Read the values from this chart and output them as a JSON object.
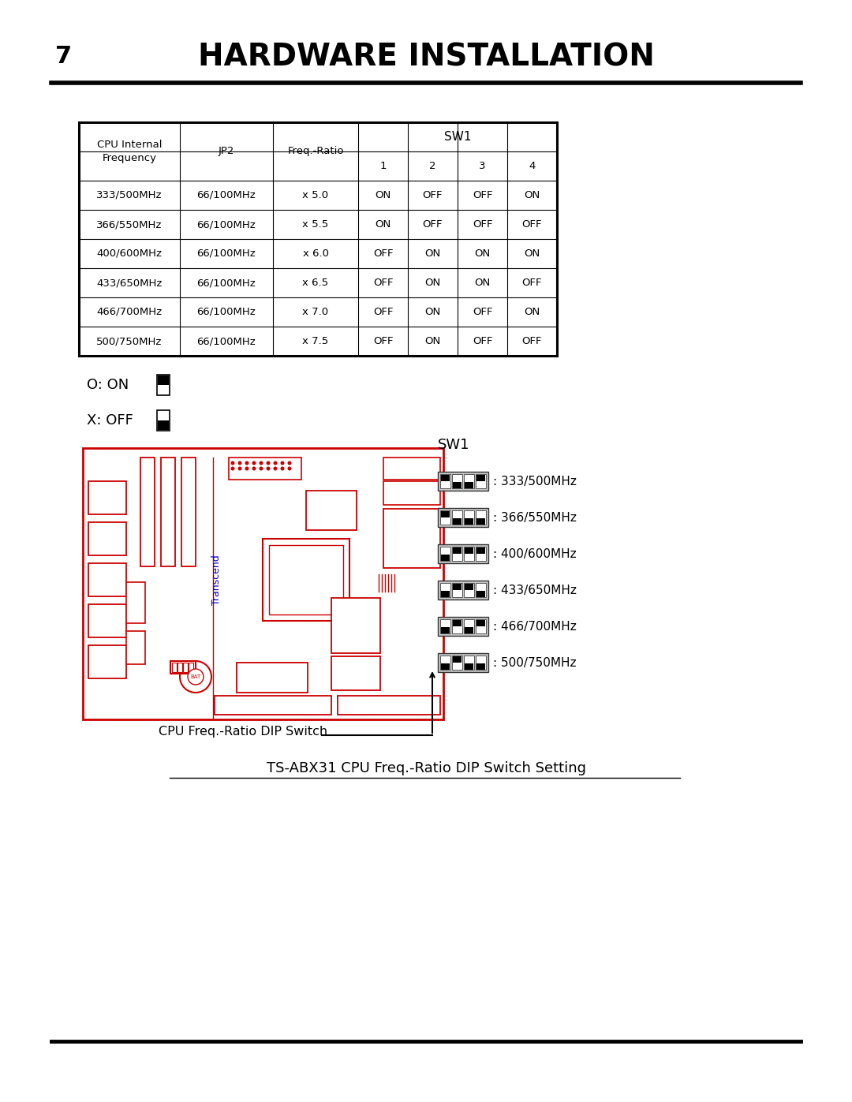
{
  "page_number": "7",
  "title": "HARDWARE INSTALLATION",
  "subtitle": "TS-ABX31 CPU Freq.-Ratio DIP Switch Setting",
  "bg_color": "#ffffff",
  "table": {
    "sw1_header": "SW1",
    "rows": [
      [
        "333/500MHz",
        "66/100MHz",
        "x 5.0",
        "ON",
        "OFF",
        "OFF",
        "ON"
      ],
      [
        "366/550MHz",
        "66/100MHz",
        "x 5.5",
        "ON",
        "OFF",
        "OFF",
        "OFF"
      ],
      [
        "400/600MHz",
        "66/100MHz",
        "x 6.0",
        "OFF",
        "ON",
        "ON",
        "ON"
      ],
      [
        "433/650MHz",
        "66/100MHz",
        "x 6.5",
        "OFF",
        "ON",
        "ON",
        "OFF"
      ],
      [
        "466/700MHz",
        "66/100MHz",
        "x 7.0",
        "OFF",
        "ON",
        "OFF",
        "ON"
      ],
      [
        "500/750MHz",
        "66/100MHz",
        "x 7.5",
        "OFF",
        "ON",
        "OFF",
        "OFF"
      ]
    ]
  },
  "legend_on": "O: ON",
  "legend_off": "X: OFF",
  "sw1_label": "SW1",
  "dip_settings": [
    {
      "freq": "333/500MHz",
      "sw": [
        1,
        0,
        0,
        1
      ]
    },
    {
      "freq": "366/550MHz",
      "sw": [
        1,
        0,
        0,
        0
      ]
    },
    {
      "freq": "400/600MHz",
      "sw": [
        0,
        1,
        1,
        1
      ]
    },
    {
      "freq": "433/650MHz",
      "sw": [
        0,
        1,
        1,
        0
      ]
    },
    {
      "freq": "466/700MHz",
      "sw": [
        0,
        1,
        0,
        1
      ]
    },
    {
      "freq": "500/750MHz",
      "sw": [
        0,
        1,
        0,
        0
      ]
    }
  ],
  "arrow_label": "CPU Freq.-Ratio DIP Switch",
  "board_color": "#cc0000",
  "transcend_color": "#0000cc"
}
